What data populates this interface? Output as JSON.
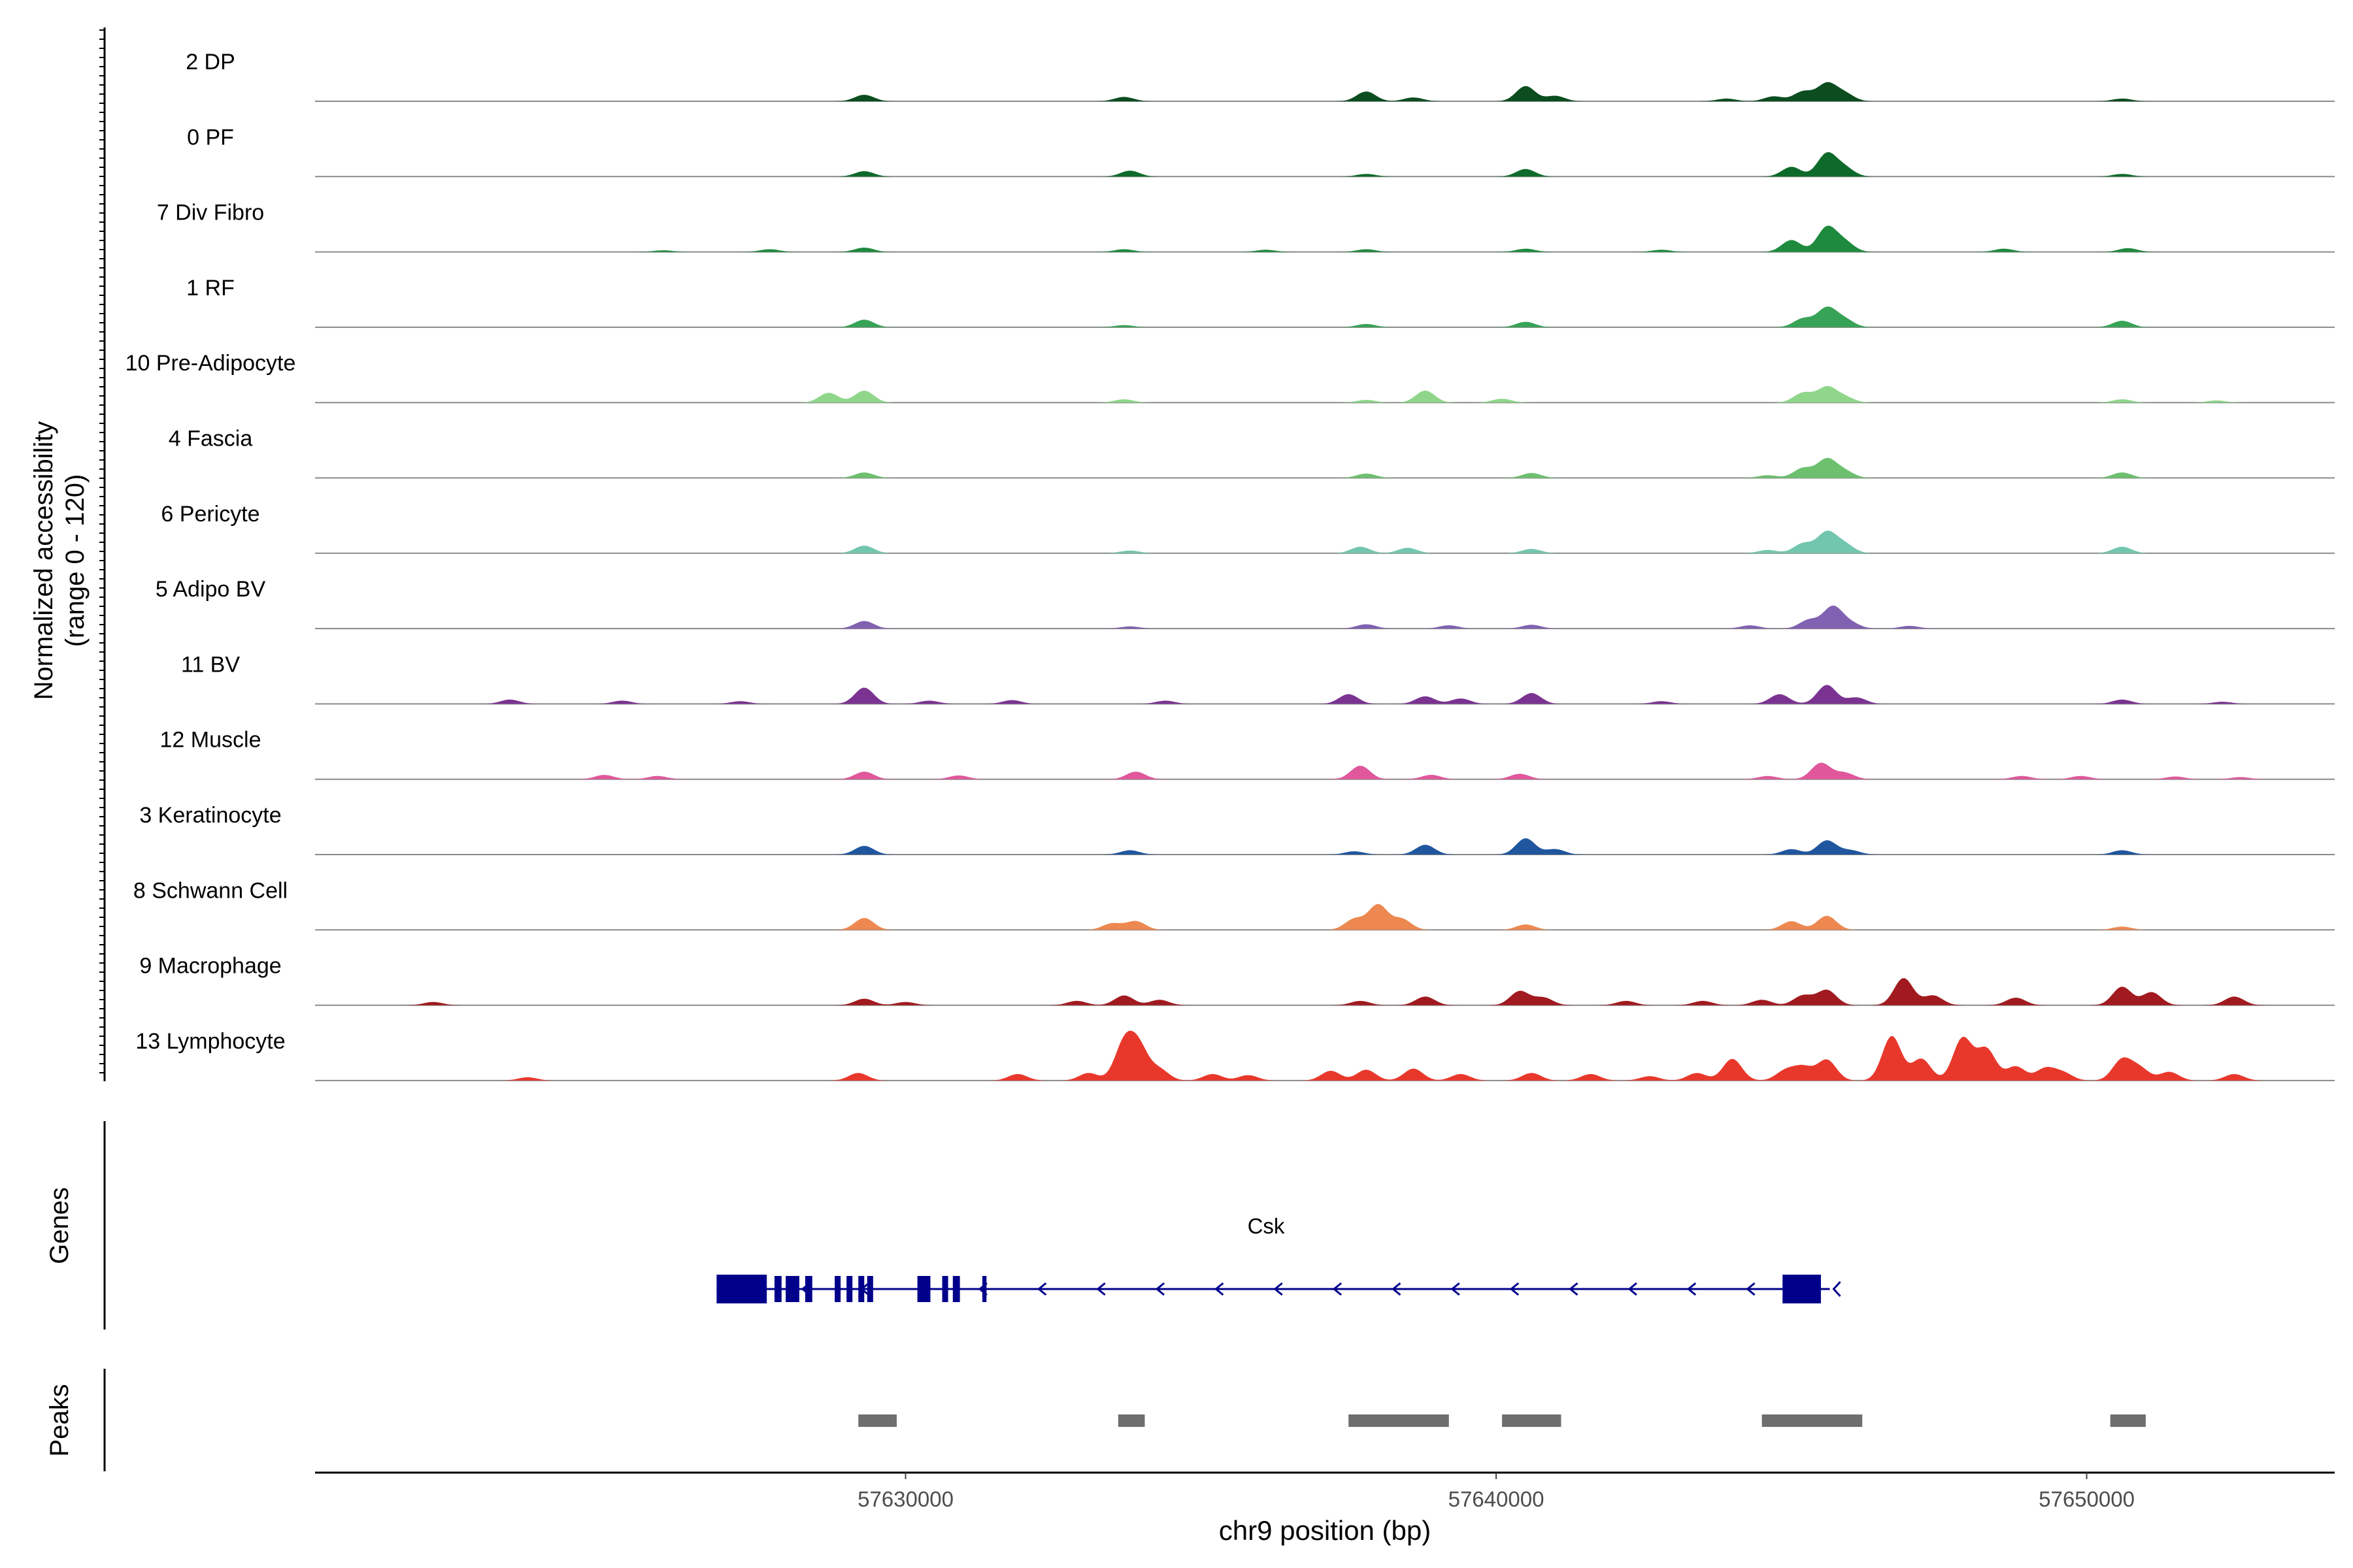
{
  "chart_data": {
    "type": "area",
    "ylabel_line1": "Normalized accessibility",
    "ylabel_line2": "(range 0 - 120)",
    "ylim": [
      0,
      120
    ],
    "xlabel": "chr9 position (bp)",
    "xlim": [
      57620000,
      57654200
    ],
    "x_ticks": [
      57630000,
      57640000,
      57650000
    ],
    "x_tick_labels": [
      "57630000",
      "57640000",
      "57650000"
    ],
    "tracks": [
      {
        "name": "2 DP",
        "color": "#0b4d1f",
        "peaks": [
          [
            57629300,
            12
          ],
          [
            57633700,
            8
          ],
          [
            57637800,
            18
          ],
          [
            57638600,
            7
          ],
          [
            57640500,
            28
          ],
          [
            57641000,
            10
          ],
          [
            57643900,
            5
          ],
          [
            57644700,
            9
          ],
          [
            57645200,
            18
          ],
          [
            57645600,
            32
          ],
          [
            57645900,
            14
          ],
          [
            57650600,
            5
          ]
        ]
      },
      {
        "name": "0 PF",
        "color": "#0e6a2b",
        "peaks": [
          [
            57629300,
            10
          ],
          [
            57633800,
            11
          ],
          [
            57637800,
            5
          ],
          [
            57640500,
            14
          ],
          [
            57645000,
            18
          ],
          [
            57645600,
            42
          ],
          [
            57645900,
            16
          ],
          [
            57650600,
            5
          ]
        ]
      },
      {
        "name": "7 Div Fibro",
        "color": "#1d8a3d",
        "peaks": [
          [
            57625900,
            3
          ],
          [
            57627700,
            5
          ],
          [
            57629300,
            8
          ],
          [
            57633700,
            5
          ],
          [
            57636100,
            4
          ],
          [
            57637800,
            5
          ],
          [
            57640500,
            6
          ],
          [
            57642800,
            4
          ],
          [
            57645000,
            22
          ],
          [
            57645600,
            45
          ],
          [
            57645900,
            18
          ],
          [
            57648600,
            6
          ],
          [
            57650700,
            7
          ]
        ]
      },
      {
        "name": "1 RF",
        "color": "#37a356",
        "peaks": [
          [
            57629300,
            14
          ],
          [
            57633700,
            4
          ],
          [
            57637800,
            6
          ],
          [
            57640500,
            10
          ],
          [
            57645200,
            16
          ],
          [
            57645600,
            35
          ],
          [
            57645900,
            14
          ],
          [
            57650600,
            12
          ]
        ]
      },
      {
        "name": "10 Pre-Adipocyte",
        "color": "#8fd68a",
        "peaks": [
          [
            57628700,
            18
          ],
          [
            57629300,
            22
          ],
          [
            57633700,
            6
          ],
          [
            57637800,
            5
          ],
          [
            57638800,
            22
          ],
          [
            57640100,
            7
          ],
          [
            57645200,
            18
          ],
          [
            57645600,
            28
          ],
          [
            57645900,
            10
          ],
          [
            57650600,
            6
          ],
          [
            57652200,
            4
          ]
        ]
      },
      {
        "name": "4 Fascia",
        "color": "#6cc06e",
        "peaks": [
          [
            57629300,
            10
          ],
          [
            57637800,
            8
          ],
          [
            57640600,
            9
          ],
          [
            57644600,
            5
          ],
          [
            57645200,
            18
          ],
          [
            57645600,
            34
          ],
          [
            57645900,
            12
          ],
          [
            57650600,
            10
          ]
        ]
      },
      {
        "name": "6 Pericyte",
        "color": "#72c6ae",
        "peaks": [
          [
            57629300,
            14
          ],
          [
            57633800,
            5
          ],
          [
            57637700,
            12
          ],
          [
            57638500,
            10
          ],
          [
            57640600,
            8
          ],
          [
            57644600,
            6
          ],
          [
            57645200,
            18
          ],
          [
            57645600,
            38
          ],
          [
            57645900,
            16
          ],
          [
            57650600,
            12
          ]
        ]
      },
      {
        "name": "5 Adipo BV",
        "color": "#8161b1",
        "peaks": [
          [
            57629300,
            14
          ],
          [
            57633800,
            4
          ],
          [
            57637800,
            8
          ],
          [
            57639200,
            6
          ],
          [
            57640600,
            7
          ],
          [
            57644300,
            6
          ],
          [
            57645300,
            16
          ],
          [
            57645700,
            40
          ],
          [
            57646000,
            10
          ],
          [
            57647000,
            5
          ]
        ]
      },
      {
        "name": "11 BV",
        "color": "#7a3391",
        "peaks": [
          [
            57623300,
            8
          ],
          [
            57625200,
            6
          ],
          [
            57627200,
            5
          ],
          [
            57629300,
            30
          ],
          [
            57630400,
            6
          ],
          [
            57631800,
            7
          ],
          [
            57634400,
            6
          ],
          [
            57637500,
            18
          ],
          [
            57638800,
            14
          ],
          [
            57639400,
            10
          ],
          [
            57640600,
            20
          ],
          [
            57642800,
            5
          ],
          [
            57644800,
            18
          ],
          [
            57645600,
            35
          ],
          [
            57646100,
            12
          ],
          [
            57650600,
            8
          ],
          [
            57652300,
            4
          ]
        ]
      },
      {
        "name": "12 Muscle",
        "color": "#e0579b",
        "peaks": [
          [
            57624900,
            8
          ],
          [
            57625800,
            6
          ],
          [
            57629300,
            14
          ],
          [
            57630900,
            7
          ],
          [
            57633900,
            14
          ],
          [
            57637700,
            25
          ],
          [
            57638900,
            8
          ],
          [
            57640400,
            10
          ],
          [
            57644600,
            6
          ],
          [
            57645500,
            30
          ],
          [
            57645900,
            12
          ],
          [
            57648900,
            6
          ],
          [
            57649900,
            6
          ],
          [
            57651500,
            5
          ],
          [
            57652600,
            4
          ]
        ]
      },
      {
        "name": "3 Keratinocyte",
        "color": "#20569e",
        "peaks": [
          [
            57629300,
            16
          ],
          [
            57633800,
            8
          ],
          [
            57637600,
            6
          ],
          [
            57638800,
            18
          ],
          [
            57640500,
            30
          ],
          [
            57641000,
            10
          ],
          [
            57645000,
            10
          ],
          [
            57645600,
            26
          ],
          [
            57646000,
            8
          ],
          [
            57650600,
            8
          ]
        ]
      },
      {
        "name": "8 Schwann Cell",
        "color": "#ed8850",
        "peaks": [
          [
            57629300,
            22
          ],
          [
            57633500,
            12
          ],
          [
            57633900,
            16
          ],
          [
            57637600,
            20
          ],
          [
            57638000,
            46
          ],
          [
            57638400,
            20
          ],
          [
            57640500,
            10
          ],
          [
            57645000,
            16
          ],
          [
            57645600,
            26
          ],
          [
            57650600,
            6
          ]
        ]
      },
      {
        "name": "9 Macrophage",
        "color": "#a11a1f",
        "peaks": [
          [
            57622000,
            6
          ],
          [
            57629300,
            12
          ],
          [
            57630000,
            6
          ],
          [
            57632900,
            8
          ],
          [
            57633700,
            18
          ],
          [
            57634300,
            10
          ],
          [
            57637700,
            8
          ],
          [
            57638800,
            16
          ],
          [
            57640400,
            26
          ],
          [
            57640800,
            14
          ],
          [
            57642200,
            8
          ],
          [
            57643500,
            8
          ],
          [
            57644500,
            10
          ],
          [
            57645200,
            18
          ],
          [
            57645600,
            28
          ],
          [
            57646900,
            50
          ],
          [
            57647400,
            18
          ],
          [
            57648800,
            14
          ],
          [
            57650600,
            34
          ],
          [
            57651100,
            24
          ],
          [
            57652500,
            16
          ]
        ]
      },
      {
        "name": "13 Lymphocyte",
        "color": "#e8382c",
        "peaks": [
          [
            57623600,
            6
          ],
          [
            57629200,
            14
          ],
          [
            57631900,
            12
          ],
          [
            57633100,
            14
          ],
          [
            57633700,
            66
          ],
          [
            57633950,
            58
          ],
          [
            57634300,
            20
          ],
          [
            57635200,
            12
          ],
          [
            57635800,
            10
          ],
          [
            57637200,
            18
          ],
          [
            57637800,
            20
          ],
          [
            57638600,
            22
          ],
          [
            57639400,
            12
          ],
          [
            57640600,
            14
          ],
          [
            57641600,
            12
          ],
          [
            57642600,
            8
          ],
          [
            57643400,
            14
          ],
          [
            57644000,
            40
          ],
          [
            57644900,
            18
          ],
          [
            57645200,
            24
          ],
          [
            57645600,
            38
          ],
          [
            57646700,
            82
          ],
          [
            57647200,
            40
          ],
          [
            57647900,
            78
          ],
          [
            57648300,
            58
          ],
          [
            57648800,
            26
          ],
          [
            57649300,
            22
          ],
          [
            57649600,
            14
          ],
          [
            57650600,
            38
          ],
          [
            57650900,
            22
          ],
          [
            57651400,
            16
          ],
          [
            57652500,
            12
          ]
        ]
      }
    ],
    "genes_label": "Genes",
    "gene": {
      "name": "Csk",
      "color": "#00008b",
      "start": 57626800,
      "end": 57645650,
      "exons": [
        [
          57626800,
          57627650
        ],
        [
          57627780,
          57627900
        ],
        [
          57627970,
          57628200
        ],
        [
          57628300,
          57628420
        ],
        [
          57628800,
          57628900
        ],
        [
          57629000,
          57629100
        ],
        [
          57629200,
          57629300
        ],
        [
          57629350,
          57629450
        ],
        [
          57630200,
          57630420
        ],
        [
          57630620,
          57630720
        ],
        [
          57630800,
          57630920
        ],
        [
          57631300,
          57631370
        ],
        [
          57644850,
          57645500
        ]
      ]
    },
    "peaks_label": "Peaks",
    "peak_regions": [
      [
        57629200,
        57629850
      ],
      [
        57633600,
        57634050
      ],
      [
        57637500,
        57639200
      ],
      [
        57640100,
        57641100
      ],
      [
        57644500,
        57646200
      ],
      [
        57650400,
        57651000
      ]
    ]
  }
}
